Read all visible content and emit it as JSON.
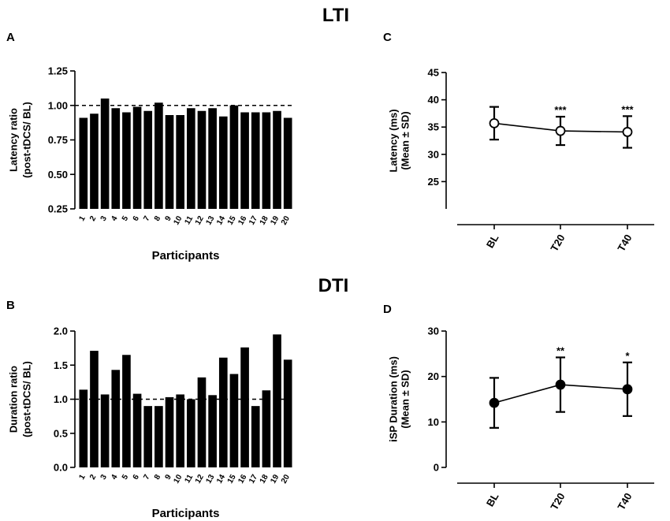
{
  "titles": {
    "top": "LTI",
    "bottom": "DTI"
  },
  "chart_data": [
    {
      "id": "A",
      "panel_label": "A",
      "type": "bar",
      "title": "",
      "ylabel_line1": "Latency ratio",
      "ylabel_line2": "(post-tDCS/ BL)",
      "xlabel": "Participants",
      "ylim": [
        0.25,
        1.25
      ],
      "yticks": [
        0.25,
        0.5,
        0.75,
        1.0,
        1.25
      ],
      "ytick_labels": [
        "0.25",
        "0.50",
        "0.75",
        "1.00",
        "1.25"
      ],
      "reference_line": 1.0,
      "categories": [
        "1",
        "2",
        "3",
        "4",
        "5",
        "6",
        "7",
        "8",
        "9",
        "10",
        "11",
        "12",
        "13",
        "14",
        "15",
        "16",
        "17",
        "18",
        "19",
        "20"
      ],
      "values": [
        0.91,
        0.94,
        1.05,
        0.98,
        0.95,
        0.99,
        0.96,
        1.02,
        0.93,
        0.93,
        0.98,
        0.96,
        0.98,
        0.92,
        1.0,
        0.95,
        0.95,
        0.95,
        0.96,
        0.91
      ]
    },
    {
      "id": "B",
      "panel_label": "B",
      "type": "bar",
      "title": "",
      "ylabel_line1": "Duration ratio",
      "ylabel_line2": "(post-tDCS/ BL)",
      "xlabel": "Participants",
      "ylim": [
        0,
        2.0
      ],
      "yticks": [
        0,
        0.5,
        1.0,
        1.5,
        2.0
      ],
      "ytick_labels": [
        "0.0",
        "0.5",
        "1.0",
        "1.5",
        "2.0"
      ],
      "reference_line": 1.0,
      "categories": [
        "1",
        "2",
        "3",
        "4",
        "5",
        "6",
        "7",
        "8",
        "9",
        "10",
        "11",
        "12",
        "13",
        "14",
        "15",
        "16",
        "17",
        "18",
        "19",
        "20"
      ],
      "values": [
        1.14,
        1.71,
        1.07,
        1.43,
        1.65,
        1.08,
        0.9,
        0.9,
        1.03,
        1.07,
        1.0,
        1.32,
        1.06,
        1.61,
        1.37,
        1.76,
        0.9,
        1.13,
        1.95,
        1.58
      ]
    },
    {
      "id": "C",
      "panel_label": "C",
      "type": "line",
      "title": "",
      "ylabel_line1": "Latency  (ms)",
      "ylabel_line2": "(Mean ± SD)",
      "xlabel": "",
      "ylim": [
        20,
        45
      ],
      "yticks": [
        25,
        30,
        35,
        40,
        45
      ],
      "ytick_labels": [
        "25",
        "30",
        "35",
        "40",
        "45"
      ],
      "categories": [
        "BL",
        "T20",
        "T40"
      ],
      "values": [
        35.7,
        34.3,
        34.1
      ],
      "sd": [
        3.0,
        2.6,
        2.9
      ],
      "significance": [
        "",
        "***",
        "***"
      ],
      "marker": "open-circle"
    },
    {
      "id": "D",
      "panel_label": "D",
      "type": "line",
      "title": "",
      "ylabel_line1": "iSP Duration  (ms)",
      "ylabel_line2": "(Mean ± SD)",
      "xlabel": "",
      "ylim": [
        0,
        30
      ],
      "yticks": [
        0,
        10,
        20,
        30
      ],
      "ytick_labels": [
        "0",
        "10",
        "20",
        "30"
      ],
      "categories": [
        "BL",
        "T20",
        "T40"
      ],
      "values": [
        14.2,
        18.2,
        17.2
      ],
      "sd": [
        5.5,
        6.0,
        5.9
      ],
      "significance": [
        "",
        "**",
        "*"
      ],
      "marker": "filled-circle"
    }
  ]
}
